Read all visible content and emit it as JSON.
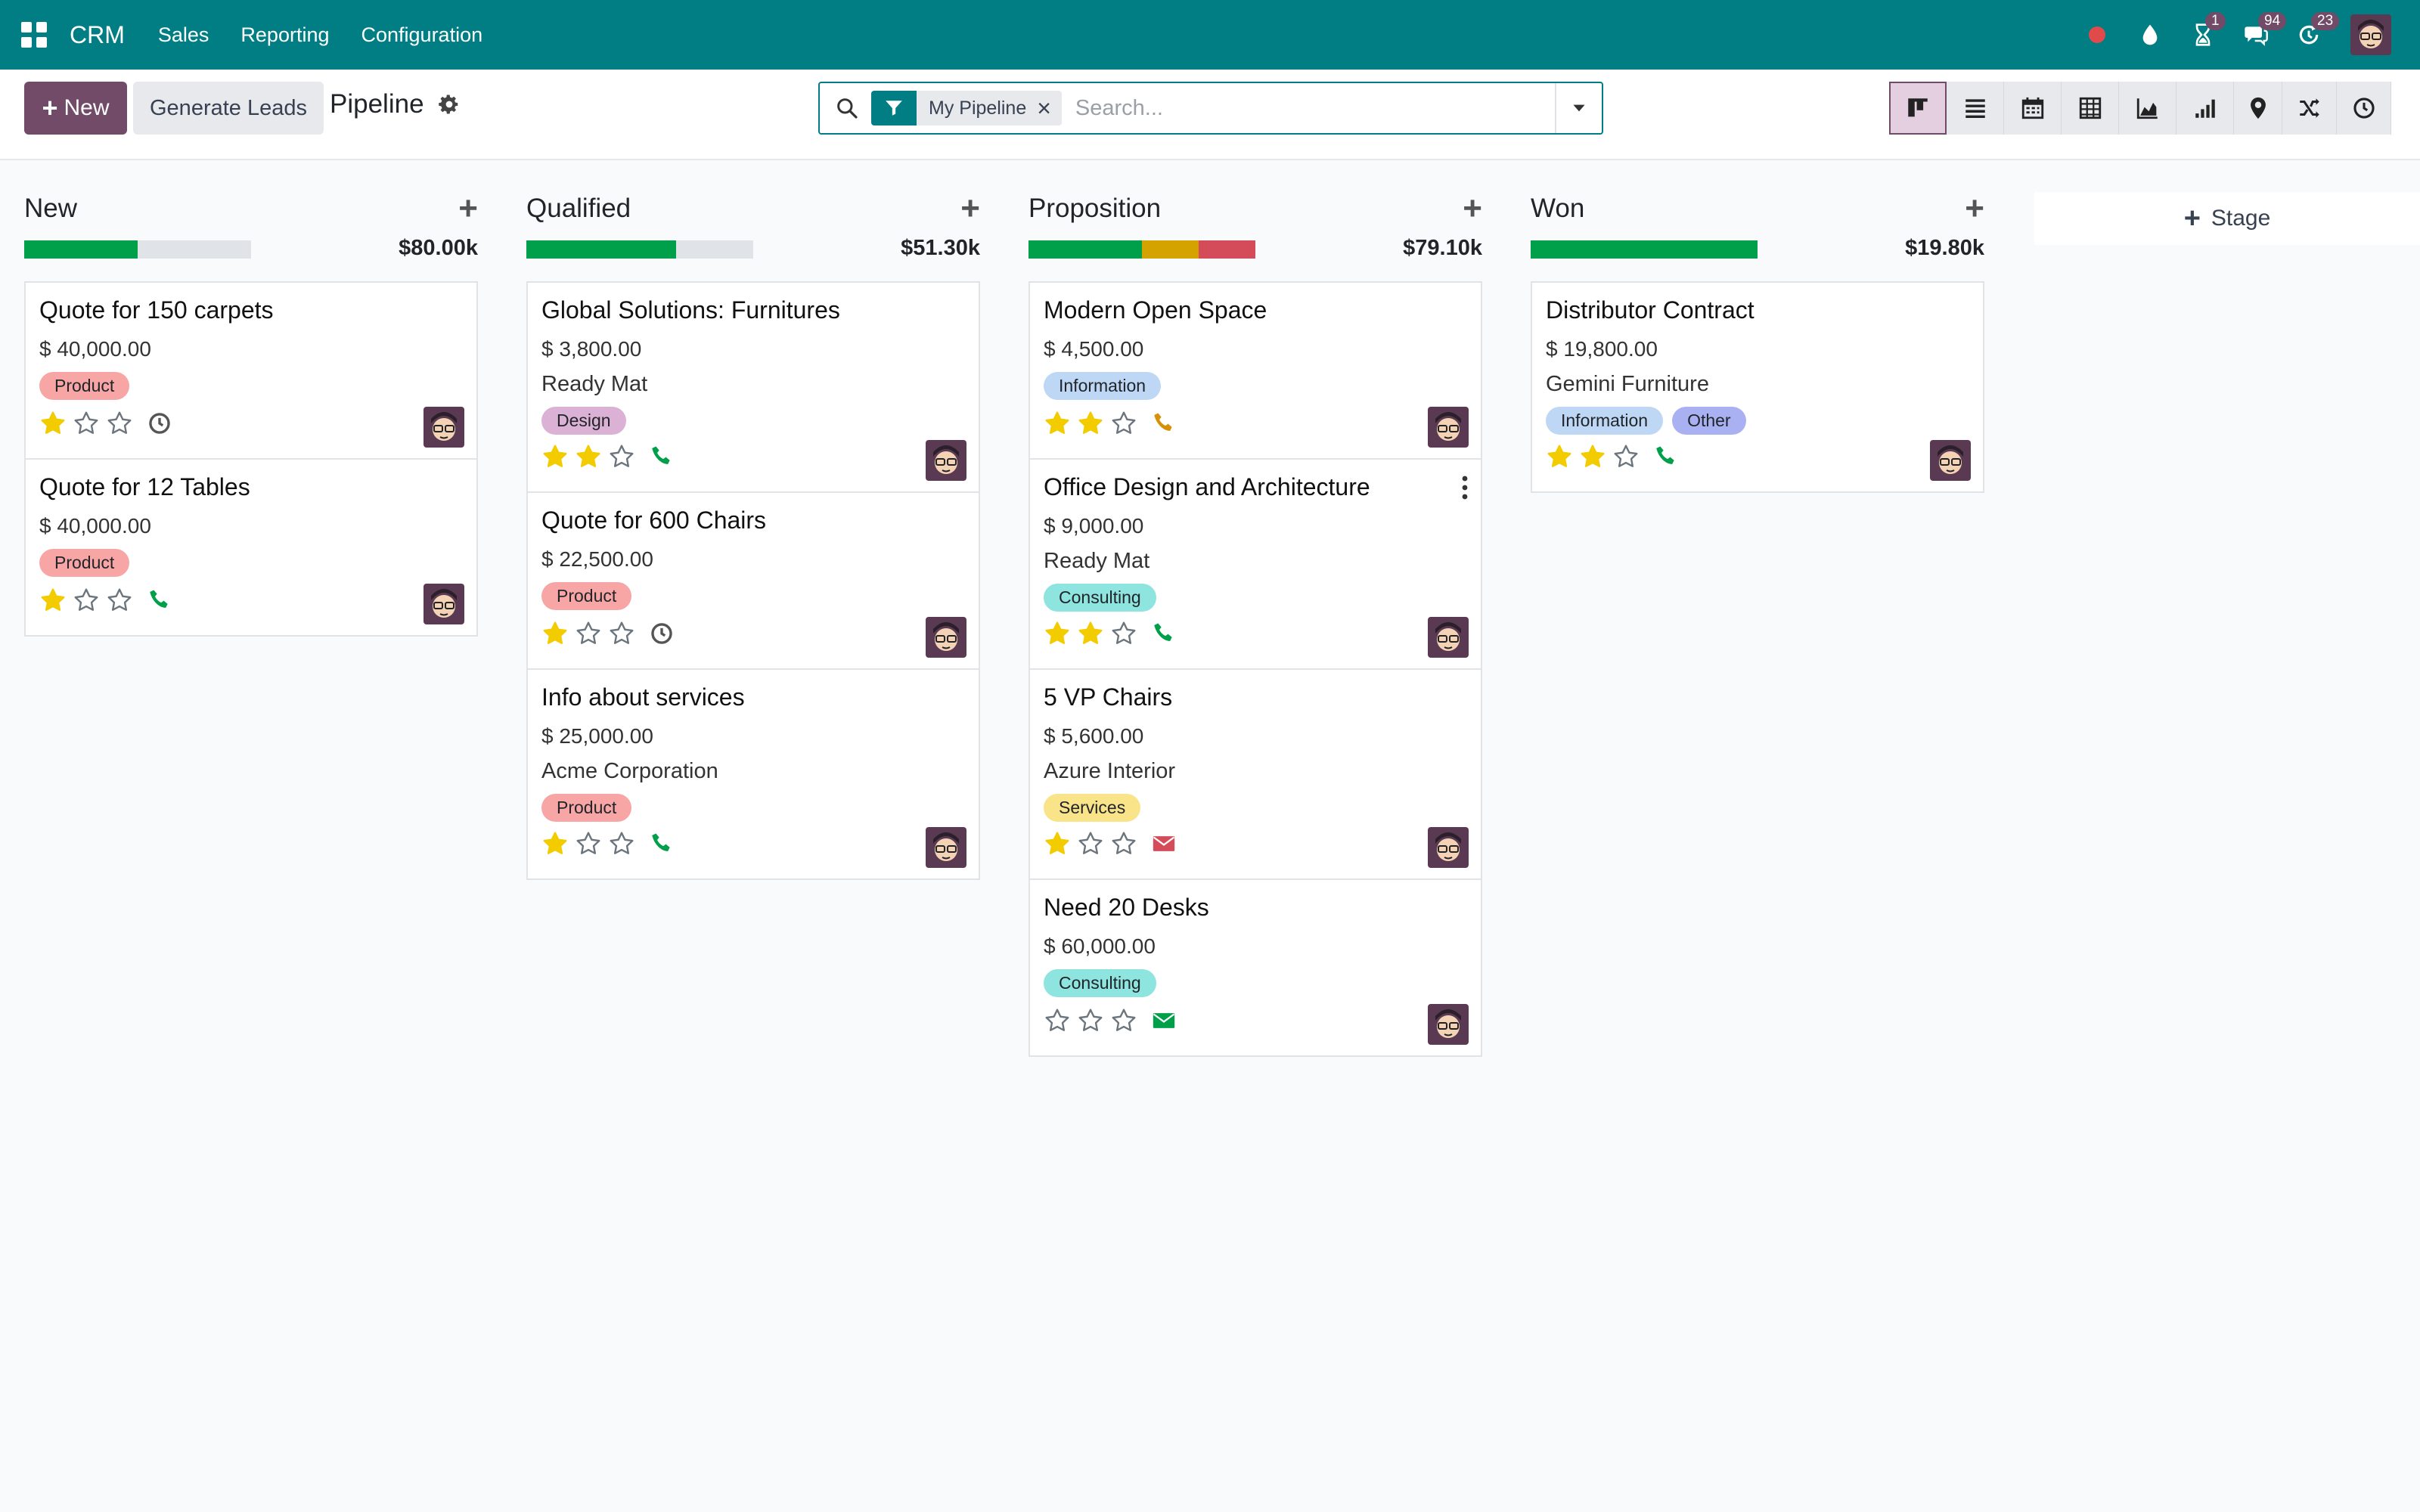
{
  "nav": {
    "brand": "CRM",
    "menu": [
      "Sales",
      "Reporting",
      "Configuration"
    ],
    "badges": {
      "activities": "1",
      "messages": "94",
      "clock": "23"
    }
  },
  "control": {
    "new_label": "New",
    "generate_leads_label": "Generate Leads",
    "breadcrumb": "Pipeline"
  },
  "search": {
    "facet": "My Pipeline",
    "placeholder": "Search..."
  },
  "views": [
    "kanban",
    "list",
    "calendar",
    "pivot",
    "graph",
    "cohort",
    "map",
    "activity-flow",
    "activity"
  ],
  "colors": {
    "brand": "#017e84",
    "primary": "#714b67",
    "star_on": "#f3cc00",
    "star_off": "#6c757d",
    "phone": "#00a04a",
    "phone_warning": "#d59207",
    "email_overdue": "#d44c59",
    "email_ok": "#00a04a",
    "progress_green": "#00a04a",
    "progress_orange": "#d5a300",
    "progress_red": "#d44c59"
  },
  "columns": [
    {
      "title": "New",
      "total": "$80.00k",
      "progress": [
        {
          "color": "#00a04a",
          "fraction": 0.5
        }
      ],
      "cards": [
        {
          "title": "Quote for 150 carpets",
          "amount": "$ 40,000.00",
          "company": "",
          "tags": [
            {
              "label": "Product",
              "color": "#f8a5a5"
            }
          ],
          "stars": 1,
          "activity": "clock",
          "activity_color": "#555555",
          "menu": false
        },
        {
          "title": "Quote for 12 Tables",
          "amount": "$ 40,000.00",
          "company": "",
          "tags": [
            {
              "label": "Product",
              "color": "#f8a5a5"
            }
          ],
          "stars": 1,
          "activity": "phone",
          "activity_color": "#00a04a",
          "menu": false
        }
      ]
    },
    {
      "title": "Qualified",
      "total": "$51.30k",
      "progress": [
        {
          "color": "#00a04a",
          "fraction": 0.66
        }
      ],
      "cards": [
        {
          "title": "Global Solutions: Furnitures",
          "amount": "$ 3,800.00",
          "company": "Ready Mat",
          "tags": [
            {
              "label": "Design",
              "color": "#dcb1d6"
            }
          ],
          "stars": 2,
          "activity": "phone",
          "activity_color": "#00a04a",
          "menu": false
        },
        {
          "title": "Quote for 600 Chairs",
          "amount": "$ 22,500.00",
          "company": "",
          "tags": [
            {
              "label": "Product",
              "color": "#f8a5a5"
            }
          ],
          "stars": 1,
          "activity": "clock",
          "activity_color": "#555555",
          "menu": false
        },
        {
          "title": "Info about services",
          "amount": "$ 25,000.00",
          "company": "Acme Corporation",
          "tags": [
            {
              "label": "Product",
              "color": "#f8a5a5"
            }
          ],
          "stars": 1,
          "activity": "phone",
          "activity_color": "#00a04a",
          "menu": false
        }
      ]
    },
    {
      "title": "Proposition",
      "total": "$79.10k",
      "progress": [
        {
          "color": "#00a04a",
          "fraction": 0.5
        },
        {
          "color": "#d5a300",
          "fraction": 0.25
        },
        {
          "color": "#d44c59",
          "fraction": 0.25
        }
      ],
      "cards": [
        {
          "title": "Modern Open Space",
          "amount": "$ 4,500.00",
          "company": "",
          "tags": [
            {
              "label": "Information",
              "color": "#bdd7f5"
            }
          ],
          "stars": 2,
          "activity": "phone",
          "activity_color": "#d59207",
          "menu": false
        },
        {
          "title": "Office Design and Architecture",
          "amount": "$ 9,000.00",
          "company": "Ready Mat",
          "tags": [
            {
              "label": "Consulting",
              "color": "#8ee4de"
            }
          ],
          "stars": 2,
          "activity": "phone",
          "activity_color": "#00a04a",
          "menu": true
        },
        {
          "title": "5 VP Chairs",
          "amount": "$ 5,600.00",
          "company": "Azure Interior",
          "tags": [
            {
              "label": "Services",
              "color": "#fae48a"
            }
          ],
          "stars": 1,
          "activity": "email",
          "activity_color": "#d44c59",
          "menu": false
        },
        {
          "title": "Need 20 Desks",
          "amount": "$ 60,000.00",
          "company": "",
          "tags": [
            {
              "label": "Consulting",
              "color": "#8ee4de"
            }
          ],
          "stars": 0,
          "activity": "email",
          "activity_color": "#00a04a",
          "menu": false
        }
      ]
    },
    {
      "title": "Won",
      "total": "$19.80k",
      "progress": [
        {
          "color": "#00a04a",
          "fraction": 1.0
        }
      ],
      "cards": [
        {
          "title": "Distributor Contract",
          "amount": "$ 19,800.00",
          "company": "Gemini Furniture",
          "tags": [
            {
              "label": "Information",
              "color": "#bdd7f5"
            },
            {
              "label": "Other",
              "color": "#a9b1f2"
            }
          ],
          "stars": 2,
          "activity": "phone",
          "activity_color": "#00a04a",
          "menu": false
        }
      ]
    }
  ],
  "add_stage_label": "Stage"
}
